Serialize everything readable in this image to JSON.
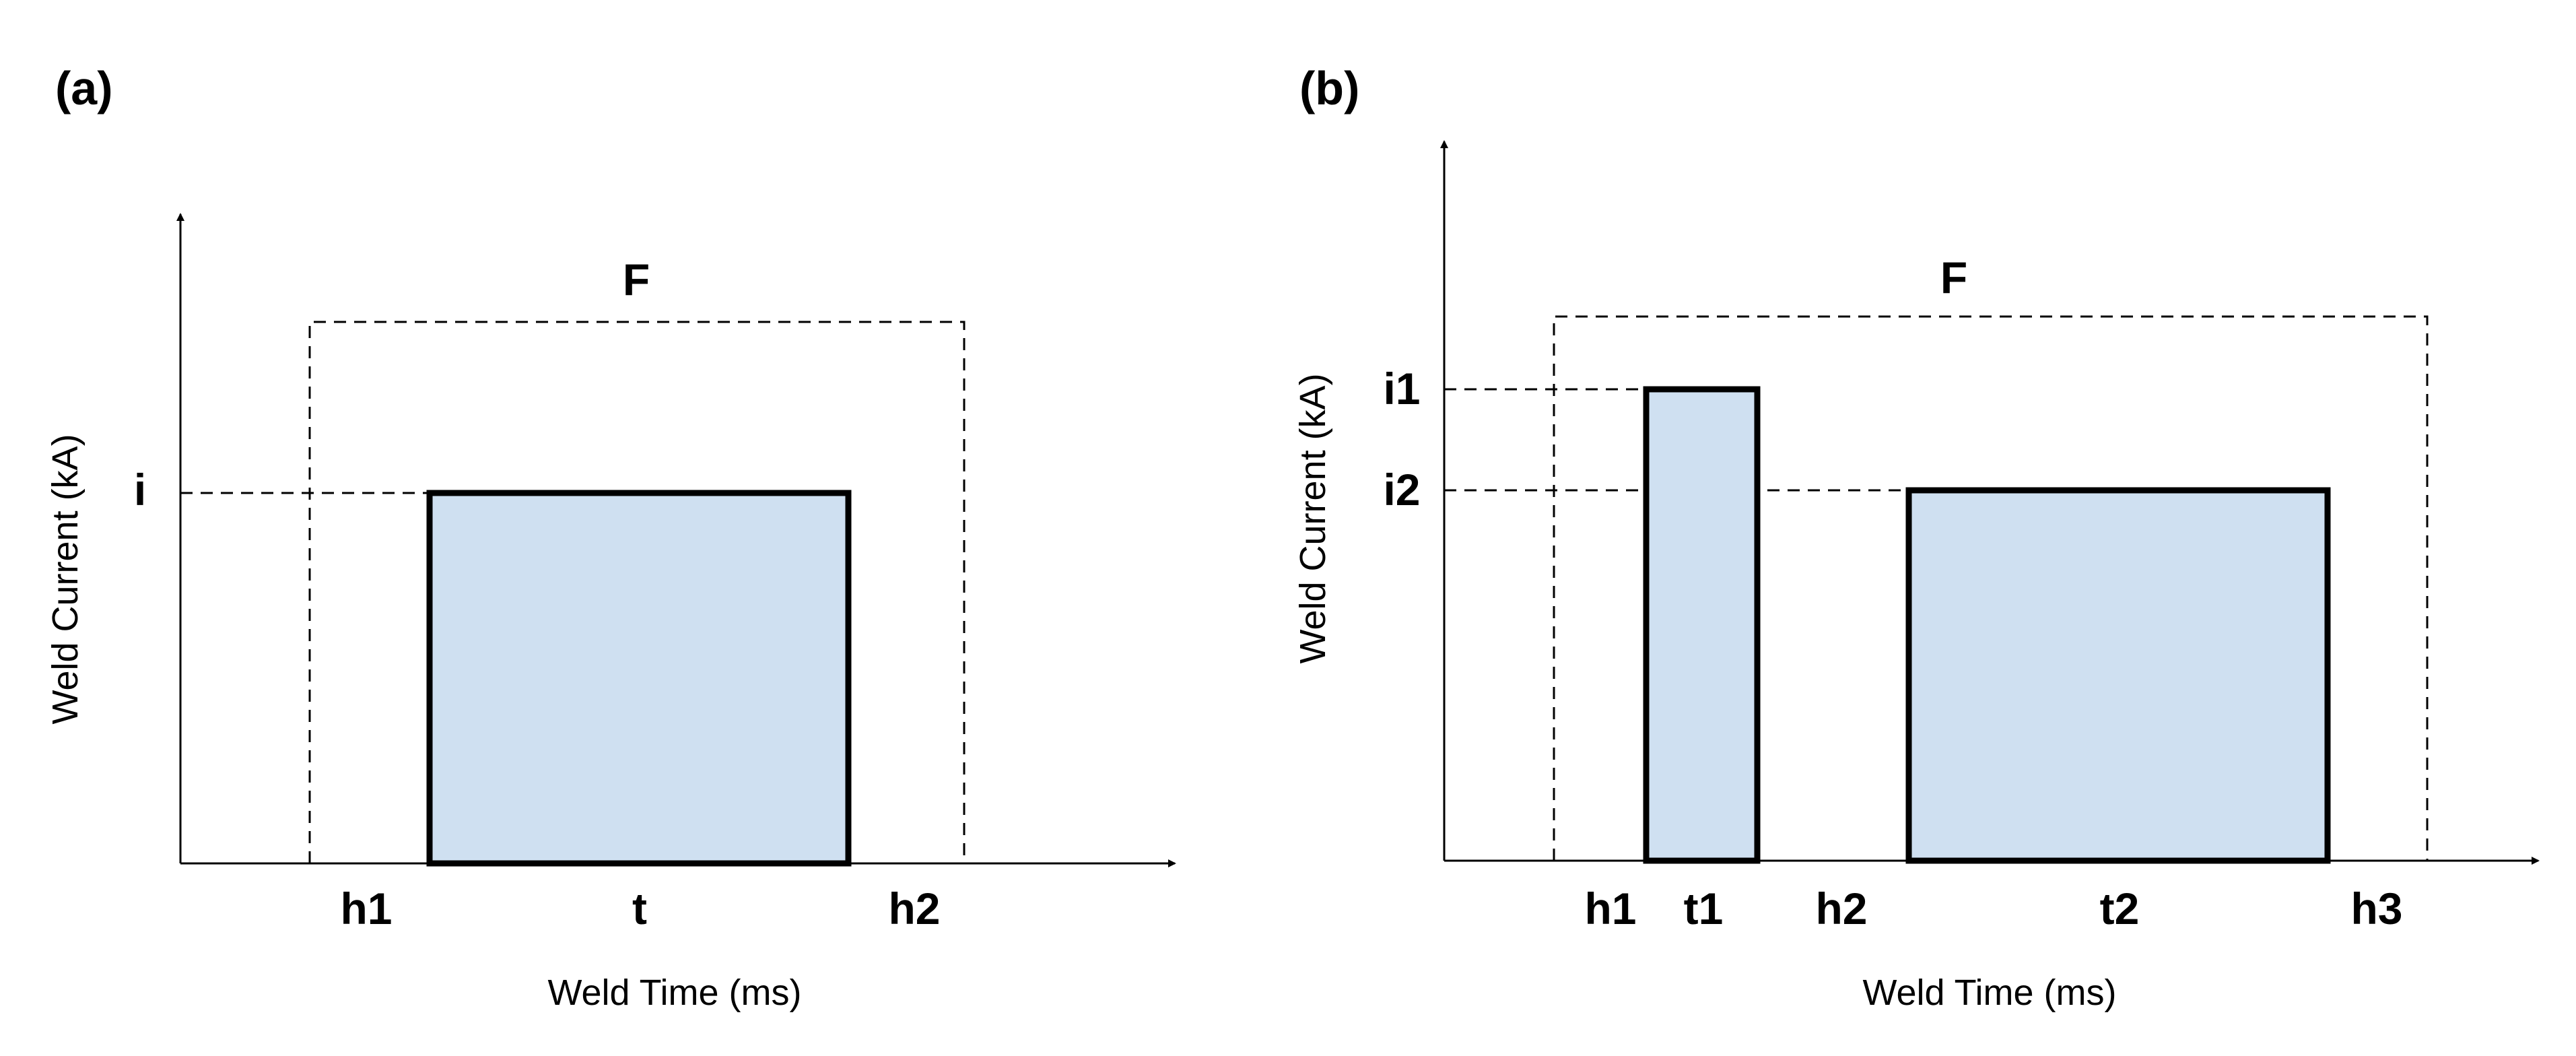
{
  "panels": {
    "a": {
      "panel_label": "(a)",
      "force_label": "F",
      "ylabel": "Weld Current (kA)",
      "xlabel": "Weld Time (ms)",
      "current_label": "i",
      "phase_labels": {
        "h1": "h1",
        "t": "t",
        "h2": "h2"
      }
    },
    "b": {
      "panel_label": "(b)",
      "force_label": "F",
      "ylabel": "Weld Current (kA)",
      "xlabel": "Weld Time (ms)",
      "current_labels": {
        "i1": "i1",
        "i2": "i2"
      },
      "phase_labels": {
        "h1": "h1",
        "t1": "t1",
        "h2": "h2",
        "t2": "t2",
        "h3": "h3"
      }
    }
  },
  "colors": {
    "pulse_fill": "#cfe0f1",
    "line": "#000000",
    "background": "#ffffff"
  }
}
